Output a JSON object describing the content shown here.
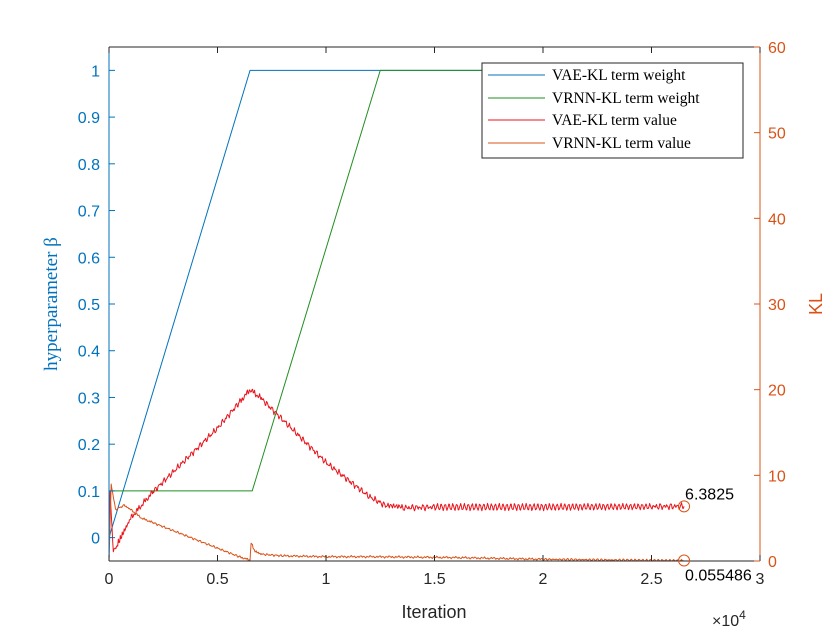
{
  "chart_data": {
    "type": "line",
    "xlabel": "Iteration",
    "x_exponent_base": "×10",
    "x_exponent_power": "4",
    "xlim": [
      0,
      30000
    ],
    "x_ticks": [
      0,
      5000,
      10000,
      15000,
      20000,
      25000,
      30000
    ],
    "x_tick_labels": [
      "0",
      "0.5",
      "1",
      "1.5",
      "2",
      "2.5",
      "3"
    ],
    "ylabel_left": "hyperparameter β",
    "ylim_left": [
      -0.05,
      1.05
    ],
    "y_left_ticks": [
      0,
      0.1,
      0.2,
      0.3,
      0.4,
      0.5,
      0.6,
      0.7,
      0.8,
      0.9,
      1
    ],
    "y_left_tick_labels": [
      "0",
      "0.1",
      "0.2",
      "0.3",
      "0.4",
      "0.5",
      "0.6",
      "0.7",
      "0.8",
      "0.9",
      "1"
    ],
    "ylabel_right": "KL",
    "ylim_right": [
      0,
      60
    ],
    "y_right_ticks": [
      0,
      10,
      20,
      30,
      40,
      50,
      60
    ],
    "y_right_tick_labels": [
      "0",
      "10",
      "20",
      "30",
      "40",
      "50",
      "60"
    ],
    "legend_position": "top-right",
    "colors": {
      "left_axis": "#0072bd",
      "right_axis": "#d95319",
      "vae_weight": "#0072bd",
      "vrnn_weight": "#1f8f1f",
      "vae_value": "#e8141c",
      "vrnn_value": "#d95319"
    },
    "series": [
      {
        "name": "VAE-KL term weight",
        "axis": "left",
        "x": [
          0,
          6500,
          26500
        ],
        "y": [
          0,
          1,
          1
        ]
      },
      {
        "name": "VRNN-KL term weight",
        "axis": "left",
        "x": [
          0,
          6600,
          12500,
          26500
        ],
        "y": [
          0.1,
          0.1,
          1,
          1
        ]
      },
      {
        "name": "VAE-KL term value",
        "axis": "right",
        "x": [
          0,
          50,
          200,
          400,
          700,
          1000,
          1500,
          2000,
          3000,
          4000,
          5000,
          6000,
          6500,
          7000,
          8000,
          9000,
          10000,
          11000,
          12000,
          12800,
          13500,
          15000,
          20000,
          25000,
          26500
        ],
        "y": [
          0,
          8,
          1,
          2,
          3.5,
          5,
          6.5,
          8,
          10.5,
          13,
          15.5,
          18.5,
          20,
          19,
          16.5,
          14,
          11.5,
          9.5,
          7.5,
          6.4,
          6.2,
          6.3,
          6.3,
          6.35,
          6.3825
        ]
      },
      {
        "name": "VRNN-KL term value",
        "axis": "right",
        "x": [
          0,
          100,
          300,
          700,
          1000,
          1500,
          2000,
          3000,
          4000,
          5000,
          6000,
          6500,
          6550,
          6700,
          7000,
          8000,
          10000,
          12000,
          14000,
          16000,
          18000,
          20000,
          24000,
          26500
        ],
        "y": [
          0,
          9,
          6,
          6.5,
          6,
          5,
          4.5,
          3.5,
          2.5,
          1.5,
          0.5,
          0.1,
          2.2,
          1.2,
          0.8,
          0.6,
          0.5,
          0.5,
          0.45,
          0.4,
          0.3,
          0.2,
          0.1,
          0.055486
        ]
      }
    ],
    "annotations": [
      {
        "series": "VAE-KL term value",
        "x": 26500,
        "y": 6.3825,
        "label": "6.3825"
      },
      {
        "series": "VRNN-KL term value",
        "x": 26500,
        "y": 0.055486,
        "label": "0.055486"
      }
    ]
  }
}
